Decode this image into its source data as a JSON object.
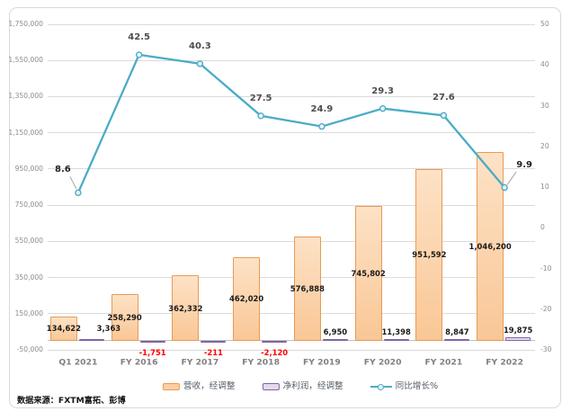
{
  "source_note": "数据来源：FXTM富拓、彭博",
  "legend": [
    {
      "label": "营收，经调整",
      "fill": "#FBCFA4",
      "border": "#E89A55"
    },
    {
      "label": "净利润，经调整",
      "fill": "#E2DAEC",
      "border": "#8064A2"
    },
    {
      "label": "同比增长%",
      "color": "#4BACC6"
    }
  ],
  "chart_data": {
    "type": "bar+line combo",
    "categories": [
      "Q1 2021",
      "FY 2016",
      "FY 2017",
      "FY 2018",
      "FY 2019",
      "FY 2020",
      "FY 2021",
      "FY 2022"
    ],
    "series": [
      {
        "name": "营收，经调整",
        "type": "bar",
        "axis": "left",
        "values": [
          134622,
          258290,
          362332,
          462020,
          576888,
          745802,
          951592,
          1046200
        ]
      },
      {
        "name": "净利润，经调整",
        "type": "bar",
        "axis": "left",
        "values": [
          3363,
          -1751,
          -211,
          -2120,
          6950,
          11398,
          8847,
          19875
        ]
      },
      {
        "name": "同比增长%",
        "type": "line",
        "axis": "right",
        "values": [
          8.6,
          42.5,
          40.3,
          27.5,
          24.9,
          29.3,
          27.6,
          9.9
        ]
      }
    ],
    "left_axis": {
      "min": -50000,
      "max": 1750000,
      "step": 200000
    },
    "right_axis": {
      "min": -30,
      "max": 50,
      "step": 10
    },
    "grid": true,
    "legend_position": "bottom",
    "colors": {
      "revenue_fill_top": "#FDE2C6",
      "revenue_fill_bottom": "#F9C796",
      "revenue_border": "#E89A55",
      "net_fill": "#E2DAEC",
      "net_border": "#8064A2",
      "line": "#4BACC6",
      "marker_fill": "#EAF4F8",
      "grid": "#DBDBDB",
      "axis_line": "#BFBFBF",
      "axis_text": "#8C8C8C",
      "data_label": "#1A1A1A",
      "negative_label": "#FF0000",
      "growth_label": "#4D4D4D",
      "leader_line": "#A6A6A6"
    }
  }
}
